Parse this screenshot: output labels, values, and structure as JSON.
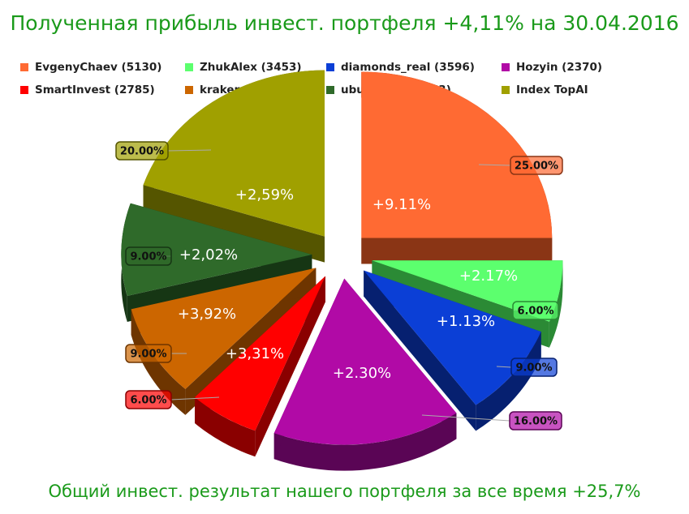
{
  "title": "Полученная прибыль инвест. портфеля +4,11% на 30.04.2016",
  "footer": "Общий инвест. результат нашего портфеля за все время +25,7%",
  "legend": [
    {
      "label": "EvgenyChaev (5130)",
      "color": "#ff6a33"
    },
    {
      "label": "ZhukAlex (3453)",
      "color": "#5cff6e"
    },
    {
      "label": "diamonds_real (3596)",
      "color": "#0b3fd6"
    },
    {
      "label": "Hozyin (2370)",
      "color": "#b10aa6"
    },
    {
      "label": "SmartInvest (2785)",
      "color": "#ff0000"
    },
    {
      "label": "kraken (3895)",
      "color": "#cc6600"
    },
    {
      "label": "ubunt_real (2963)",
      "color": "#2f6a2a"
    },
    {
      "label": "Index TopAI",
      "color": "#a0a000"
    }
  ],
  "chart_data": {
    "type": "pie",
    "title": "Полученная прибыль инвест. портфеля +4,11% на 30.04.2016",
    "slices": [
      {
        "name": "EvgenyChaev (5130)",
        "share": 25.0,
        "share_label": "25.00%",
        "inner_label": "+9.11%",
        "color": "#ff6a33",
        "dark": "#8a3515"
      },
      {
        "name": "ZhukAlex (3453)",
        "share": 6.0,
        "share_label": "6.00%",
        "inner_label": "+2.17%",
        "color": "#5cff6e",
        "dark": "#2b8a35"
      },
      {
        "name": "diamonds_real (3596)",
        "share": 9.0,
        "share_label": "9.00%",
        "inner_label": "+1.13%",
        "color": "#0b3fd6",
        "dark": "#062070"
      },
      {
        "name": "Hozyin (2370)",
        "share": 16.0,
        "share_label": "16.00%",
        "inner_label": "+2.30%",
        "color": "#b10aa6",
        "dark": "#5a0555"
      },
      {
        "name": "SmartInvest (2785)",
        "share": 6.0,
        "share_label": "6.00%",
        "inner_label": "+3,31%",
        "color": "#ff0000",
        "dark": "#8a0000"
      },
      {
        "name": "kraken (3895)",
        "share": 9.0,
        "share_label": "9.00%",
        "inner_label": "+3,92%",
        "color": "#cc6600",
        "dark": "#6e3500"
      },
      {
        "name": "ubunt_real (2963)",
        "share": 9.0,
        "share_label": "9.00%",
        "inner_label": "+2,02%",
        "color": "#2f6a2a",
        "dark": "#163614"
      },
      {
        "name": "Index TopAI",
        "share": 20.0,
        "share_label": "20.00%",
        "inner_label": "+2,59%",
        "color": "#a0a000",
        "dark": "#555500"
      }
    ],
    "legend_position": "top"
  }
}
